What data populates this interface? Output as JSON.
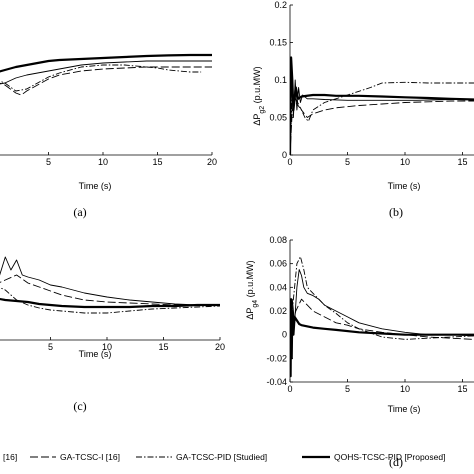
{
  "legend": {
    "entries": [
      {
        "text": "[16]",
        "series": "s0",
        "dash": ""
      },
      {
        "text": "GA-TCSC-I [16]",
        "series": "s1",
        "dash": "8,3"
      },
      {
        "text": "GA-TCSC-PID [Studied]",
        "series": "s2",
        "dash": "6,2,1.5,2"
      },
      {
        "text": "QOHS-TCSC-PID [Proposed]",
        "series": "s3",
        "dash": ""
      }
    ]
  },
  "chart_data": [
    {
      "type": "line",
      "panel": "(a)",
      "xlabel": "Time (s)",
      "ylabel": "",
      "xlim": [
        0,
        20
      ],
      "xticks": [
        "5",
        "10",
        "15",
        "20"
      ],
      "series": [
        {
          "id": "s0",
          "x": [
            0,
            1,
            2,
            3,
            4,
            5,
            6,
            8,
            10,
            12,
            14,
            16,
            18,
            20
          ],
          "y": [
            0.9,
            0.91,
            0.935,
            0.95,
            0.96,
            0.97,
            0.98,
            1.0,
            1.01,
            1.015,
            1.02,
            1.02,
            1.02,
            1.02
          ]
        },
        {
          "id": "s1",
          "x": [
            0,
            1,
            2,
            2.5,
            3,
            4,
            5,
            6,
            8,
            10,
            12,
            14,
            16,
            18,
            20
          ],
          "y": [
            0.92,
            0.9,
            0.86,
            0.85,
            0.87,
            0.9,
            0.93,
            0.95,
            0.97,
            0.98,
            0.985,
            0.99,
            0.99,
            0.99,
            0.99
          ]
        },
        {
          "id": "s2",
          "x": [
            0,
            1,
            2,
            3,
            4,
            5,
            6,
            8,
            10,
            12,
            14,
            15,
            16,
            18,
            19
          ],
          "y": [
            0.93,
            0.91,
            0.87,
            0.88,
            0.91,
            0.94,
            0.96,
            0.99,
            1.0,
            1.0,
            0.99,
            0.985,
            0.975,
            0.965,
            0.965
          ]
        },
        {
          "id": "s3",
          "x": [
            0,
            1,
            2,
            3,
            4,
            5,
            6,
            8,
            10,
            12,
            14,
            16,
            18,
            20
          ],
          "y": [
            0.96,
            0.975,
            0.99,
            1.0,
            1.01,
            1.02,
            1.025,
            1.03,
            1.035,
            1.04,
            1.045,
            1.048,
            1.05,
            1.05
          ]
        }
      ]
    },
    {
      "type": "line",
      "panel": "(b)",
      "xlabel": "Time (s)",
      "ylabel": "ΔP_g2 (p.u.MW)",
      "xlim": [
        0,
        16
      ],
      "ylim": [
        0,
        0.2
      ],
      "xticks": [
        "0",
        "5",
        "10",
        "15"
      ],
      "yticks": [
        "0",
        "0.05",
        "0.1",
        "0.15",
        "0.2"
      ],
      "series": [
        {
          "id": "s0",
          "x": [
            0,
            0.15,
            0.3,
            0.45,
            0.6,
            0.75,
            0.9,
            1.1,
            1.5,
            2,
            3,
            5,
            8,
            11,
            14,
            16
          ],
          "y": [
            0,
            0.12,
            0.05,
            0.1,
            0.06,
            0.09,
            0.07,
            0.08,
            0.075,
            0.075,
            0.074,
            0.073,
            0.073,
            0.073,
            0.074,
            0.074
          ]
        },
        {
          "id": "s1",
          "x": [
            0,
            0.2,
            0.5,
            1,
            1.5,
            2,
            3,
            4,
            6,
            8,
            10,
            12,
            14,
            16
          ],
          "y": [
            0,
            0.06,
            0.075,
            0.06,
            0.05,
            0.055,
            0.06,
            0.063,
            0.066,
            0.068,
            0.07,
            0.071,
            0.072,
            0.072
          ]
        },
        {
          "id": "s2",
          "x": [
            0,
            0.2,
            0.5,
            1,
            1.3,
            1.6,
            2,
            3,
            4,
            5,
            6,
            7,
            8,
            10,
            12,
            14,
            16
          ],
          "y": [
            0,
            0.08,
            0.07,
            0.06,
            0.05,
            0.045,
            0.06,
            0.07,
            0.075,
            0.08,
            0.085,
            0.09,
            0.096,
            0.097,
            0.096,
            0.096,
            0.096
          ]
        },
        {
          "id": "s3",
          "x": [
            0,
            0.1,
            0.2,
            0.3,
            0.5,
            0.7,
            1,
            2,
            3,
            4,
            6,
            8,
            10,
            12,
            14,
            16
          ],
          "y": [
            0,
            0.13,
            0.1,
            0.06,
            0.09,
            0.075,
            0.078,
            0.08,
            0.08,
            0.079,
            0.079,
            0.078,
            0.077,
            0.076,
            0.075,
            0.074
          ]
        }
      ]
    },
    {
      "type": "line",
      "panel": "(c)",
      "xlabel": "Time (s)",
      "ylabel": "",
      "xlim": [
        0,
        20
      ],
      "xticks": [
        "5",
        "10",
        "15",
        "20"
      ],
      "series": [
        {
          "id": "s0",
          "x": [
            0,
            0.5,
            1,
            1.5,
            2,
            2.5,
            3,
            4,
            5,
            6,
            8,
            10,
            12,
            14,
            16,
            18,
            20
          ],
          "y": [
            0.025,
            0.03,
            0.048,
            0.035,
            0.045,
            0.03,
            0.028,
            0.025,
            0.02,
            0.018,
            0.012,
            0.008,
            0.005,
            0.003,
            0.001,
            0.0,
            0.0
          ]
        },
        {
          "id": "s1",
          "x": [
            0,
            1,
            2,
            3,
            4,
            5,
            6,
            8,
            10,
            12,
            14,
            16,
            18,
            20
          ],
          "y": [
            0.02,
            0.025,
            0.03,
            0.022,
            0.018,
            0.014,
            0.01,
            0.005,
            0.003,
            0.002,
            0.001,
            0.0,
            0.0,
            0.0
          ]
        },
        {
          "id": "s2",
          "x": [
            0,
            1,
            2,
            3,
            4,
            5,
            6,
            7,
            8,
            9,
            10,
            12,
            14,
            16,
            18,
            20
          ],
          "y": [
            0.02,
            0.015,
            0.005,
            0.0,
            -0.003,
            -0.005,
            -0.006,
            -0.007,
            -0.008,
            -0.008,
            -0.008,
            -0.006,
            -0.004,
            -0.003,
            -0.002,
            -0.001
          ]
        },
        {
          "id": "s3",
          "x": [
            0,
            1,
            2,
            3,
            4,
            6,
            8,
            10,
            12,
            14,
            16,
            18,
            20
          ],
          "y": [
            0.007,
            0.005,
            0.004,
            0.003,
            0.001,
            -0.001,
            -0.002,
            -0.002,
            -0.002,
            -0.001,
            -0.001,
            0.0,
            0.0
          ]
        }
      ]
    },
    {
      "type": "line",
      "panel": "(d)",
      "xlabel": "Time (s)",
      "ylabel": "ΔP_g4 (p.u.MW)",
      "xlim": [
        0,
        16
      ],
      "ylim": [
        -0.04,
        0.08
      ],
      "xticks": [
        "0",
        "5",
        "10",
        "15"
      ],
      "yticks": [
        "-0.04",
        "-0.02",
        "0",
        "0.02",
        "0.04",
        "0.06",
        "0.08"
      ],
      "series": [
        {
          "id": "s0",
          "x": [
            0,
            0.2,
            0.4,
            0.6,
            0.8,
            1,
            1.2,
            1.5,
            2,
            2.5,
            3,
            4,
            5,
            6,
            8,
            10,
            12,
            14,
            16
          ],
          "y": [
            0,
            0.03,
            0.01,
            0.04,
            0.055,
            0.05,
            0.04,
            0.035,
            0.033,
            0.03,
            0.025,
            0.02,
            0.015,
            0.01,
            0.005,
            0.002,
            0.0,
            0.0,
            -0.001
          ]
        },
        {
          "id": "s1",
          "x": [
            0,
            0.5,
            1,
            1.5,
            2,
            3,
            4,
            5,
            6,
            8,
            10,
            12,
            14,
            16
          ],
          "y": [
            0,
            0.02,
            0.03,
            0.025,
            0.02,
            0.015,
            0.01,
            0.008,
            0.005,
            0.002,
            0.0,
            -0.002,
            -0.003,
            -0.004
          ]
        },
        {
          "id": "s2",
          "x": [
            0,
            0.3,
            0.6,
            0.9,
            1.2,
            1.5,
            2,
            2.5,
            3,
            4,
            5,
            6,
            8,
            10,
            12,
            14,
            16
          ],
          "y": [
            0,
            0.03,
            0.06,
            0.066,
            0.055,
            0.04,
            0.035,
            0.03,
            0.025,
            0.018,
            0.01,
            0.005,
            -0.002,
            -0.004,
            -0.003,
            -0.002,
            -0.001
          ]
        },
        {
          "id": "s3",
          "x": [
            0,
            0.05,
            0.1,
            0.15,
            0.2,
            0.3,
            0.4,
            0.6,
            0.8,
            1,
            2,
            3,
            4,
            6,
            8,
            10,
            12,
            14,
            16
          ],
          "y": [
            0,
            -0.035,
            0.03,
            -0.02,
            0.02,
            0.0,
            0.015,
            0.012,
            0.009,
            0.008,
            0.006,
            0.005,
            0.004,
            0.002,
            0.001,
            0.0,
            0.0,
            0.0,
            0.0
          ]
        }
      ]
    }
  ]
}
